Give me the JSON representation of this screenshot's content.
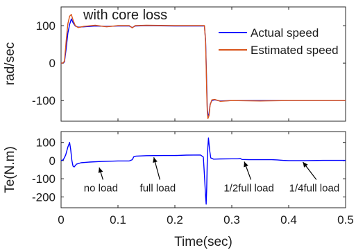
{
  "chart_data": [
    {
      "type": "line",
      "title": "with core loss",
      "xlabel": "",
      "ylabel": "rad/sec",
      "xlim": [
        0,
        0.5
      ],
      "ylim": [
        -155,
        150
      ],
      "x_ticks": [
        0,
        0.1,
        0.2,
        0.3,
        0.4,
        0.5
      ],
      "y_ticks": [
        100,
        0,
        -100
      ],
      "y_tick_labels": [
        "100",
        "0",
        "-100"
      ],
      "legend_position": "top-right",
      "series": [
        {
          "name": "Actual speed",
          "color": "#0000ff",
          "points": [
            [
              0,
              0
            ],
            [
              0.003,
              0
            ],
            [
              0.006,
              3
            ],
            [
              0.009,
              40
            ],
            [
              0.012,
              80
            ],
            [
              0.015,
              103
            ],
            [
              0.018,
              118
            ],
            [
              0.021,
              108
            ],
            [
              0.025,
              99
            ],
            [
              0.03,
              96
            ],
            [
              0.04,
              97
            ],
            [
              0.06,
              99
            ],
            [
              0.08,
              98
            ],
            [
              0.1,
              99
            ],
            [
              0.12,
              99
            ],
            [
              0.125,
              95
            ],
            [
              0.13,
              99
            ],
            [
              0.15,
              100
            ],
            [
              0.2,
              99
            ],
            [
              0.24,
              99
            ],
            [
              0.252,
              99
            ],
            [
              0.254,
              60
            ],
            [
              0.255,
              0
            ],
            [
              0.256,
              -60
            ],
            [
              0.257,
              -120
            ],
            [
              0.258,
              -140
            ],
            [
              0.26,
              -135
            ],
            [
              0.262,
              -110
            ],
            [
              0.265,
              -100
            ],
            [
              0.27,
              -98
            ],
            [
              0.28,
              -101
            ],
            [
              0.3,
              -100
            ],
            [
              0.35,
              -100
            ],
            [
              0.4,
              -100
            ],
            [
              0.45,
              -100
            ],
            [
              0.5,
              -100
            ]
          ]
        },
        {
          "name": "Estimated speed",
          "color": "#d95319",
          "points": [
            [
              0,
              0
            ],
            [
              0.003,
              0
            ],
            [
              0.006,
              5
            ],
            [
              0.009,
              60
            ],
            [
              0.012,
              105
            ],
            [
              0.015,
              125
            ],
            [
              0.018,
              130
            ],
            [
              0.021,
              115
            ],
            [
              0.025,
              100
            ],
            [
              0.03,
              95
            ],
            [
              0.04,
              98
            ],
            [
              0.06,
              101
            ],
            [
              0.08,
              97
            ],
            [
              0.1,
              100
            ],
            [
              0.12,
              100
            ],
            [
              0.125,
              94
            ],
            [
              0.13,
              100
            ],
            [
              0.15,
              101
            ],
            [
              0.2,
              100
            ],
            [
              0.24,
              100
            ],
            [
              0.252,
              100
            ],
            [
              0.254,
              55
            ],
            [
              0.255,
              -10
            ],
            [
              0.256,
              -80
            ],
            [
              0.257,
              -130
            ],
            [
              0.258,
              -148
            ],
            [
              0.26,
              -140
            ],
            [
              0.262,
              -112
            ],
            [
              0.265,
              -98
            ],
            [
              0.27,
              -97
            ],
            [
              0.28,
              -102
            ],
            [
              0.3,
              -100
            ],
            [
              0.35,
              -101
            ],
            [
              0.4,
              -100
            ],
            [
              0.45,
              -100
            ],
            [
              0.5,
              -100
            ]
          ]
        }
      ]
    },
    {
      "type": "line",
      "title": "",
      "xlabel": "Time(sec)",
      "ylabel": "Te(N.m)",
      "xlim": [
        0,
        0.5
      ],
      "ylim": [
        -260,
        160
      ],
      "x_ticks": [
        0,
        0.1,
        0.2,
        0.3,
        0.4,
        0.5
      ],
      "x_tick_labels": [
        "0",
        "0.1",
        "0.2",
        "0.3",
        "0.4",
        "0.5"
      ],
      "y_ticks": [
        100,
        0,
        -100,
        -200
      ],
      "y_tick_labels": [
        "100",
        "0",
        "-100",
        "-200"
      ],
      "series": [
        {
          "name": "",
          "color": "#0000ff",
          "points": [
            [
              0,
              0
            ],
            [
              0.004,
              5
            ],
            [
              0.008,
              30
            ],
            [
              0.012,
              75
            ],
            [
              0.015,
              100
            ],
            [
              0.017,
              60
            ],
            [
              0.019,
              0
            ],
            [
              0.021,
              -30
            ],
            [
              0.023,
              -35
            ],
            [
              0.027,
              -20
            ],
            [
              0.035,
              -12
            ],
            [
              0.05,
              -8
            ],
            [
              0.07,
              -5
            ],
            [
              0.09,
              -3
            ],
            [
              0.1,
              -2
            ],
            [
              0.12,
              -2
            ],
            [
              0.125,
              5
            ],
            [
              0.128,
              22
            ],
            [
              0.132,
              25
            ],
            [
              0.15,
              27
            ],
            [
              0.18,
              28
            ],
            [
              0.2,
              28
            ],
            [
              0.22,
              30
            ],
            [
              0.245,
              31
            ],
            [
              0.25,
              20
            ],
            [
              0.252,
              -80
            ],
            [
              0.254,
              -200
            ],
            [
              0.255,
              -240
            ],
            [
              0.256,
              -150
            ],
            [
              0.257,
              0
            ],
            [
              0.258,
              80
            ],
            [
              0.259,
              125
            ],
            [
              0.261,
              60
            ],
            [
              0.263,
              15
            ],
            [
              0.268,
              8
            ],
            [
              0.28,
              9
            ],
            [
              0.3,
              10
            ],
            [
              0.31,
              10
            ],
            [
              0.315,
              12
            ],
            [
              0.318,
              6
            ],
            [
              0.33,
              5
            ],
            [
              0.35,
              5
            ],
            [
              0.37,
              5
            ],
            [
              0.38,
              4
            ],
            [
              0.39,
              1
            ],
            [
              0.4,
              0
            ],
            [
              0.43,
              0
            ],
            [
              0.46,
              1
            ],
            [
              0.5,
              1
            ]
          ]
        }
      ],
      "annotations": [
        {
          "text": "no load",
          "x": 0.07,
          "y": -170,
          "arrow_to": [
            0.067,
            -38
          ]
        },
        {
          "text": "full load",
          "x": 0.17,
          "y": -170,
          "arrow_to": [
            0.163,
            18
          ]
        },
        {
          "text": "1/2full load",
          "x": 0.33,
          "y": -170,
          "arrow_to": [
            0.322,
            -6
          ]
        },
        {
          "text": "1/4full load",
          "x": 0.445,
          "y": -170,
          "arrow_to": [
            0.425,
            -8
          ]
        }
      ]
    }
  ]
}
